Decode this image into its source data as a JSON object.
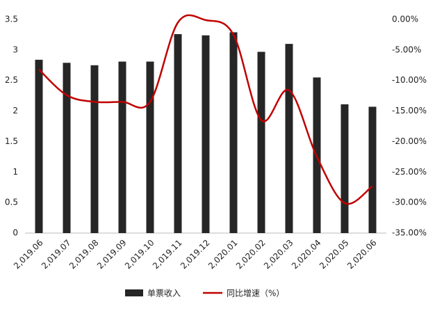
{
  "chart_data": {
    "type": "bar-line",
    "categories": [
      "2,019.06",
      "2,019.07",
      "2,019.08",
      "2,019.09",
      "2,019.10",
      "2,019.11",
      "2,019.12",
      "2,020.01",
      "2,020.02",
      "2,020.03",
      "2,020.04",
      "2,020.05",
      "2,020.06"
    ],
    "series": [
      {
        "name": "单票收入",
        "type": "bar",
        "color": "#262626",
        "values": [
          2.84,
          2.79,
          2.75,
          2.81,
          2.81,
          3.26,
          3.24,
          3.29,
          2.97,
          3.1,
          2.55,
          2.11,
          2.07
        ]
      },
      {
        "name": "同比增速（%）",
        "type": "line",
        "axis": "y2",
        "color": "#c00000",
        "values": [
          -8.2,
          -12.4,
          -13.5,
          -13.5,
          -13.5,
          -0.5,
          -0.1,
          -2.5,
          -16.5,
          -11.6,
          -22.5,
          -30.1,
          -27.3
        ]
      }
    ],
    "ylim": [
      0,
      3.5
    ],
    "yticks": [
      0,
      0.5,
      1,
      1.5,
      2,
      2.5,
      3,
      3.5
    ],
    "y2lim": [
      -35,
      0
    ],
    "y2ticks": [
      {
        "value": -35,
        "label": "-35.00%"
      },
      {
        "value": -30,
        "label": "-30.00%"
      },
      {
        "value": -25,
        "label": "-25.00%"
      },
      {
        "value": -20,
        "label": "-20.00%"
      },
      {
        "value": -15,
        "label": "-15.00%"
      },
      {
        "value": -10,
        "label": "-10.00%"
      },
      {
        "value": -5,
        "label": "-5.00%"
      },
      {
        "value": 0,
        "label": "0.00%"
      }
    ],
    "legend": "bottom"
  }
}
